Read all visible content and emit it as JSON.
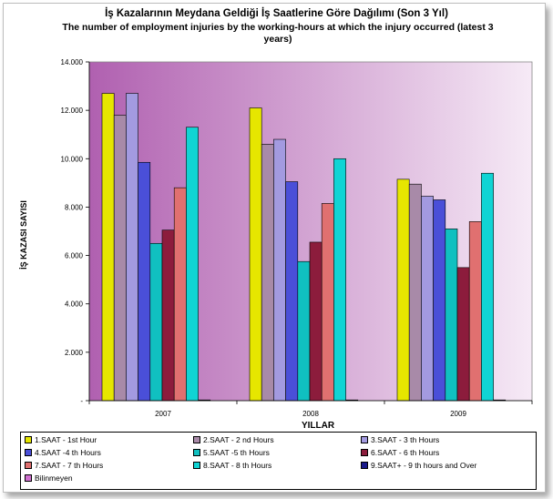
{
  "chart_data": {
    "type": "bar",
    "title": "İş Kazalarının Meydana Geldiği İş Saatlerine Göre Dağılımı (Son 3 Yıl)",
    "subtitle": "The number of employment injuries by the working-hours at which the injury occurred (latest 3 years)",
    "xlabel": "YILLAR",
    "ylabel": "İŞ KAZASI  SAYISI",
    "ylim": [
      0,
      14000
    ],
    "yticks": [
      0,
      2000,
      4000,
      6000,
      8000,
      10000,
      12000,
      14000
    ],
    "ytick_labels": [
      "-",
      "2.000",
      "4.000",
      "6.000",
      "8.000",
      "10.000",
      "12.000",
      "14.000"
    ],
    "categories": [
      "2007",
      "2008",
      "2009"
    ],
    "legend_position": "bottom",
    "grid": false,
    "series": [
      {
        "name": "1.SAAT - 1st Hour",
        "color": "#e6e600",
        "values": [
          12700,
          12100,
          9150
        ]
      },
      {
        "name": "2.SAAT - 2 nd Hours",
        "color": "#a88aa8",
        "values": [
          11800,
          10600,
          8950
        ]
      },
      {
        "name": "3.SAAT - 3 th Hours",
        "color": "#a39ae0",
        "values": [
          12700,
          10800,
          8450
        ]
      },
      {
        "name": "4.SAAT -4 th  Hours",
        "color": "#4a4fd8",
        "values": [
          9850,
          9050,
          8300
        ]
      },
      {
        "name": "5.SAAT -5 th  Hours",
        "color": "#10c0c0",
        "values": [
          6500,
          5750,
          7100
        ]
      },
      {
        "name": "6.SAAT - 6 th  Hours",
        "color": "#8c1c3c",
        "values": [
          7050,
          6550,
          5500
        ]
      },
      {
        "name": "7.SAAT - 7 th  Hours",
        "color": "#e07070",
        "values": [
          8800,
          8150,
          7400
        ]
      },
      {
        "name": "8.SAAT - 8 th Hours",
        "color": "#10d4d4",
        "values": [
          11300,
          10000,
          9400
        ]
      },
      {
        "name": "9.SAAT+ - 9 th hours  and Over",
        "color": "#1a1a8a",
        "values": [
          25,
          25,
          25
        ]
      },
      {
        "name": "Bilinmeyen",
        "color": "#d070d0",
        "values": [
          0,
          0,
          0
        ]
      }
    ]
  },
  "colors": {
    "plot_gradient_left": "#b060b0",
    "plot_gradient_right": "#f6eaf6"
  }
}
